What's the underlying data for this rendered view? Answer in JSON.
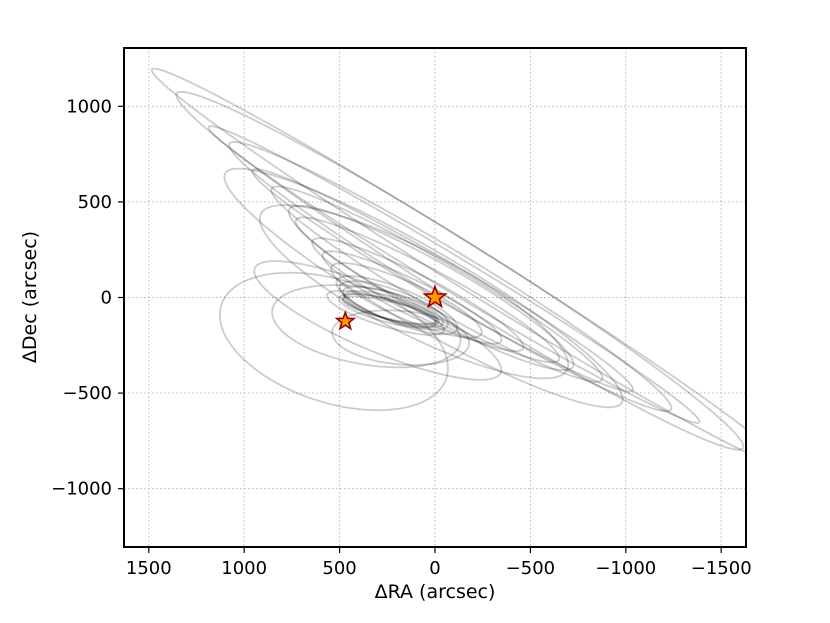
{
  "chart_data": {
    "type": "scatter",
    "title": "",
    "xlabel": "ΔRA (arcsec)",
    "ylabel": "ΔDec (arcsec)",
    "xlim": [
      1630,
      -1630
    ],
    "ylim": [
      -1305,
      1305
    ],
    "x_axis_inverted": true,
    "xticks": [
      1500,
      1000,
      500,
      0,
      -500,
      -1000,
      -1500
    ],
    "xtick_labels": [
      "1500",
      "1000",
      "500",
      "0",
      "−500",
      "−1000",
      "−1500"
    ],
    "yticks": [
      -1000,
      -500,
      0,
      500,
      1000
    ],
    "ytick_labels": [
      "−1000",
      "−500",
      "0",
      "500",
      "1000"
    ],
    "grid": true,
    "orbit_color": "#000000",
    "orbit_opacity": 0.2,
    "markers": [
      {
        "name": "primary",
        "x": 0,
        "y": 0,
        "symbol": "star",
        "size": "large",
        "fill": "#ff9900",
        "edge": "#990000"
      },
      {
        "name": "companion",
        "x": 470,
        "y": -125,
        "symbol": "star",
        "size": "small",
        "fill": "#ff9900",
        "edge": "#990000"
      }
    ],
    "series": [
      {
        "cx": 235,
        "cy": -62,
        "a": 255,
        "b": 52,
        "deg": 14
      },
      {
        "cx": 228,
        "cy": -58,
        "a": 258,
        "b": 60,
        "deg": 16
      },
      {
        "cx": 240,
        "cy": -66,
        "a": 250,
        "b": 45,
        "deg": 13
      },
      {
        "cx": 220,
        "cy": -50,
        "a": 275,
        "b": 68,
        "deg": 18
      },
      {
        "cx": 250,
        "cy": -70,
        "a": 262,
        "b": 58,
        "deg": 15
      },
      {
        "cx": 215,
        "cy": -42,
        "a": 300,
        "b": 80,
        "deg": 20
      },
      {
        "cx": 200,
        "cy": -40,
        "a": 340,
        "b": 90,
        "deg": 22
      },
      {
        "cx": 260,
        "cy": -80,
        "a": 320,
        "b": 70,
        "deg": 17
      },
      {
        "cx": 150,
        "cy": -15,
        "a": 430,
        "b": 95,
        "deg": 24
      },
      {
        "cx": 120,
        "cy": 0,
        "a": 520,
        "b": 90,
        "deg": 26
      },
      {
        "cx": 90,
        "cy": 15,
        "a": 620,
        "b": 100,
        "deg": 27
      },
      {
        "cx": 40,
        "cy": 40,
        "a": 780,
        "b": 110,
        "deg": 28
      },
      {
        "cx": 20,
        "cy": 50,
        "a": 850,
        "b": 140,
        "deg": 29
      },
      {
        "cx": -10,
        "cy": 70,
        "a": 1000,
        "b": 120,
        "deg": 30
      },
      {
        "cx": -40,
        "cy": 90,
        "a": 1150,
        "b": 100,
        "deg": 30
      },
      {
        "cx": -80,
        "cy": 110,
        "a": 1350,
        "b": 130,
        "deg": 31
      },
      {
        "cx": -100,
        "cy": 120,
        "a": 1500,
        "b": 90,
        "deg": 31
      },
      {
        "cx": -130,
        "cy": 140,
        "a": 1750,
        "b": 150,
        "deg": 32
      },
      {
        "cx": -170,
        "cy": 160,
        "a": 1950,
        "b": 110,
        "deg": 32
      },
      {
        "cx": 360,
        "cy": -150,
        "a": 500,
        "b": 200,
        "deg": 10
      },
      {
        "cx": 530,
        "cy": -230,
        "a": 620,
        "b": 320,
        "deg": 18
      },
      {
        "cx": 180,
        "cy": -210,
        "a": 360,
        "b": 140,
        "deg": 5
      },
      {
        "cx": 300,
        "cy": -120,
        "a": 700,
        "b": 160,
        "deg": 23
      },
      {
        "cx": 110,
        "cy": 30,
        "a": 900,
        "b": 220,
        "deg": 27
      },
      {
        "cx": 60,
        "cy": 50,
        "a": 1200,
        "b": 200,
        "deg": 30
      }
    ]
  }
}
